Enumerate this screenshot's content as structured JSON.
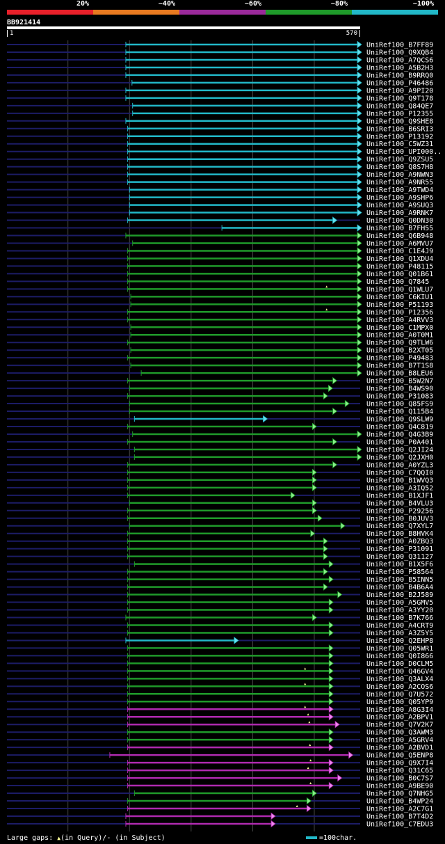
{
  "legend": [
    {
      "label": "20%",
      "color": "#e8202a"
    },
    {
      "label": "~40%",
      "color": "#e87a20"
    },
    {
      "label": "~60%",
      "color": "#9a2a9a"
    },
    {
      "label": "~80%",
      "color": "#1f9a2a"
    },
    {
      "label": "~100%",
      "color": "#22b8c8"
    }
  ],
  "colors": {
    "cyan": "#22b8c8",
    "green": "#1f9a2a",
    "purple": "#b02ab0",
    "dash": "#1c1c66",
    "gridline": "#444444"
  },
  "query": {
    "id": "BB921414",
    "start": "1",
    "end": "570",
    "length": 570
  },
  "footer": {
    "large_gaps": "Large gaps:",
    "in_query": "(in Query)/-",
    "in_subject": "(in Subject)",
    "scale_label": "=100char."
  },
  "chart_data": {
    "type": "alignment",
    "hits": [
      {
        "name": "UniRef100_B7FF89",
        "start": 194,
        "end": 570,
        "color": "cyan"
      },
      {
        "name": "UniRef100_Q9XQB4",
        "start": 194,
        "end": 570,
        "color": "cyan"
      },
      {
        "name": "UniRef100_A7QCS6",
        "start": 194,
        "end": 570,
        "color": "cyan"
      },
      {
        "name": "UniRef100_A5B2H3",
        "start": 194,
        "end": 570,
        "color": "cyan"
      },
      {
        "name": "UniRef100_B9RRQ0",
        "start": 194,
        "end": 570,
        "color": "cyan"
      },
      {
        "name": "UniRef100_P46486",
        "start": 204,
        "end": 570,
        "color": "cyan"
      },
      {
        "name": "UniRef100_A9PI20",
        "start": 194,
        "end": 570,
        "color": "cyan"
      },
      {
        "name": "UniRef100_Q9T178",
        "start": 194,
        "end": 570,
        "color": "cyan"
      },
      {
        "name": "UniRef100_Q84QE7",
        "start": 205,
        "end": 570,
        "color": "cyan"
      },
      {
        "name": "UniRef100_P12355",
        "start": 205,
        "end": 570,
        "color": "cyan"
      },
      {
        "name": "UniRef100_Q9SHE8",
        "start": 194,
        "end": 570,
        "color": "cyan"
      },
      {
        "name": "UniRef100_B6SRI3",
        "start": 197,
        "end": 570,
        "color": "cyan"
      },
      {
        "name": "UniRef100_P13192",
        "start": 197,
        "end": 570,
        "color": "cyan"
      },
      {
        "name": "UniRef100_C5WZ31",
        "start": 197,
        "end": 570,
        "color": "cyan"
      },
      {
        "name": "UniRef100_UPI000..",
        "start": 197,
        "end": 570,
        "color": "cyan"
      },
      {
        "name": "UniRef100_Q9ZSU5",
        "start": 197,
        "end": 570,
        "color": "cyan"
      },
      {
        "name": "UniRef100_Q8S7H8",
        "start": 197,
        "end": 570,
        "color": "cyan"
      },
      {
        "name": "UniRef100_A9NWN3",
        "start": 197,
        "end": 570,
        "color": "cyan"
      },
      {
        "name": "UniRef100_A9NR55",
        "start": 197,
        "end": 570,
        "color": "cyan"
      },
      {
        "name": "UniRef100_A9TWD4",
        "start": 200,
        "end": 570,
        "color": "cyan"
      },
      {
        "name": "UniRef100_A9SHP6",
        "start": 200,
        "end": 570,
        "color": "cyan"
      },
      {
        "name": "UniRef100_A9SUQ3",
        "start": 200,
        "end": 570,
        "color": "cyan"
      },
      {
        "name": "UniRef100_A9RNK7",
        "start": 200,
        "end": 570,
        "color": "cyan"
      },
      {
        "name": "UniRef100_Q0DN30",
        "start": 197,
        "end": 530,
        "color": "cyan"
      },
      {
        "name": "UniRef100_B7FH55",
        "start": 350,
        "end": 570,
        "color": "cyan"
      },
      {
        "name": "UniRef100_Q6B948",
        "start": 194,
        "end": 570,
        "color": "green"
      },
      {
        "name": "UniRef100_A6MVU7",
        "start": 205,
        "end": 570,
        "color": "green"
      },
      {
        "name": "UniRef100_C1E4J9",
        "start": 197,
        "end": 570,
        "color": "green"
      },
      {
        "name": "UniRef100_Q1XDU4",
        "start": 197,
        "end": 570,
        "color": "green"
      },
      {
        "name": "UniRef100_P48115",
        "start": 197,
        "end": 570,
        "color": "green"
      },
      {
        "name": "UniRef100_Q01B61",
        "start": 197,
        "end": 570,
        "color": "green"
      },
      {
        "name": "UniRef100_Q7845",
        "start": 197,
        "end": 570,
        "color": "green"
      },
      {
        "name": "UniRef100_Q1WLU7",
        "start": 197,
        "end": 570,
        "color": "green",
        "gaps": [
          520
        ]
      },
      {
        "name": "UniRef100_C6KIU1",
        "start": 202,
        "end": 570,
        "color": "green"
      },
      {
        "name": "UniRef100_P51193",
        "start": 202,
        "end": 570,
        "color": "green"
      },
      {
        "name": "UniRef100_P12356",
        "start": 197,
        "end": 570,
        "color": "green",
        "gaps": [
          520
        ]
      },
      {
        "name": "UniRef100_A4RVV3",
        "start": 197,
        "end": 570,
        "color": "green"
      },
      {
        "name": "UniRef100_C1MPX0",
        "start": 202,
        "end": 570,
        "color": "green"
      },
      {
        "name": "UniRef100_A0T0M1",
        "start": 202,
        "end": 570,
        "color": "green"
      },
      {
        "name": "UniRef100_Q9TLW6",
        "start": 197,
        "end": 570,
        "color": "green"
      },
      {
        "name": "UniRef100_B2XT05",
        "start": 202,
        "end": 570,
        "color": "green"
      },
      {
        "name": "UniRef100_P49483",
        "start": 197,
        "end": 570,
        "color": "green"
      },
      {
        "name": "UniRef100_B7T1S8",
        "start": 202,
        "end": 570,
        "color": "green"
      },
      {
        "name": "UniRef100_B8LEU6",
        "start": 219,
        "end": 570,
        "color": "green"
      },
      {
        "name": "UniRef100_B5W2N7",
        "start": 197,
        "end": 530,
        "color": "green"
      },
      {
        "name": "UniRef100_B4WS90",
        "start": 200,
        "end": 523,
        "color": "green"
      },
      {
        "name": "UniRef100_P31083",
        "start": 197,
        "end": 515,
        "color": "green"
      },
      {
        "name": "UniRef100_Q85FS9",
        "start": 200,
        "end": 550,
        "color": "green"
      },
      {
        "name": "UniRef100_Q115B4",
        "start": 200,
        "end": 530,
        "color": "green"
      },
      {
        "name": "UniRef100_Q9SLW9",
        "start": 208,
        "end": 417,
        "color": "cyan"
      },
      {
        "name": "UniRef100_Q4C819",
        "start": 197,
        "end": 497,
        "color": "green"
      },
      {
        "name": "UniRef100_Q4G3B9",
        "start": 205,
        "end": 570,
        "color": "green"
      },
      {
        "name": "UniRef100_P0A401",
        "start": 197,
        "end": 530,
        "color": "green"
      },
      {
        "name": "UniRef100_Q2JI24",
        "start": 208,
        "end": 570,
        "color": "green"
      },
      {
        "name": "UniRef100_Q2JXH0",
        "start": 208,
        "end": 570,
        "color": "green"
      },
      {
        "name": "UniRef100_A0YZL3",
        "start": 197,
        "end": 530,
        "color": "green"
      },
      {
        "name": "UniRef100_C7QQI0",
        "start": 197,
        "end": 497,
        "color": "green"
      },
      {
        "name": "UniRef100_B1WVQ3",
        "start": 197,
        "end": 497,
        "color": "green"
      },
      {
        "name": "UniRef100_A3IQ52",
        "start": 197,
        "end": 497,
        "color": "green"
      },
      {
        "name": "UniRef100_B1XJF1",
        "start": 197,
        "end": 462,
        "color": "green"
      },
      {
        "name": "UniRef100_B4VLU3",
        "start": 200,
        "end": 497,
        "color": "green"
      },
      {
        "name": "UniRef100_P29256",
        "start": 197,
        "end": 497,
        "color": "green"
      },
      {
        "name": "UniRef100_B0JUV3",
        "start": 197,
        "end": 506,
        "color": "green"
      },
      {
        "name": "UniRef100_Q7XYL7",
        "start": 200,
        "end": 543,
        "color": "green"
      },
      {
        "name": "UniRef100_B8HVK4",
        "start": 197,
        "end": 494,
        "color": "green"
      },
      {
        "name": "UniRef100_A0ZBQ3",
        "start": 197,
        "end": 515,
        "color": "green"
      },
      {
        "name": "UniRef100_P31091",
        "start": 197,
        "end": 515,
        "color": "green"
      },
      {
        "name": "UniRef100_Q31127",
        "start": 197,
        "end": 515,
        "color": "green"
      },
      {
        "name": "UniRef100_B1X5F6",
        "start": 208,
        "end": 524,
        "color": "green"
      },
      {
        "name": "UniRef100_P58564",
        "start": 197,
        "end": 515,
        "color": "green"
      },
      {
        "name": "UniRef100_B5INN5",
        "start": 197,
        "end": 524,
        "color": "green"
      },
      {
        "name": "UniRef100_B4B6A4",
        "start": 197,
        "end": 515,
        "color": "green"
      },
      {
        "name": "UniRef100_B2J589",
        "start": 197,
        "end": 538,
        "color": "green"
      },
      {
        "name": "UniRef100_A5GMV5",
        "start": 197,
        "end": 524,
        "color": "green"
      },
      {
        "name": "UniRef100_A3YY20",
        "start": 197,
        "end": 524,
        "color": "green"
      },
      {
        "name": "UniRef100_B7K766",
        "start": 194,
        "end": 497,
        "color": "green"
      },
      {
        "name": "UniRef100_A4CRT9",
        "start": 197,
        "end": 524,
        "color": "green"
      },
      {
        "name": "UniRef100_A3Z5Y5",
        "start": 197,
        "end": 524,
        "color": "green"
      },
      {
        "name": "UniRef100_Q2EHP8",
        "start": 194,
        "end": 370,
        "color": "cyan"
      },
      {
        "name": "UniRef100_Q05WR1",
        "start": 197,
        "end": 524,
        "color": "green"
      },
      {
        "name": "UniRef100_Q0I866",
        "start": 197,
        "end": 524,
        "color": "green"
      },
      {
        "name": "UniRef100_D0CLM5",
        "start": 197,
        "end": 524,
        "color": "green"
      },
      {
        "name": "UniRef100_Q46GV4",
        "start": 197,
        "end": 524,
        "color": "green",
        "gaps": [
          485
        ]
      },
      {
        "name": "UniRef100_Q3ALX4",
        "start": 197,
        "end": 524,
        "color": "green"
      },
      {
        "name": "UniRef100_A2COS6",
        "start": 197,
        "end": 524,
        "color": "green",
        "gaps": [
          485
        ]
      },
      {
        "name": "UniRef100_Q7U572",
        "start": 197,
        "end": 524,
        "color": "green"
      },
      {
        "name": "UniRef100_Q05YP9",
        "start": 197,
        "end": 524,
        "color": "green"
      },
      {
        "name": "UniRef100_A8G3I4",
        "start": 197,
        "end": 524,
        "color": "purple",
        "gaps": [
          485
        ]
      },
      {
        "name": "UniRef100_A2BPV1",
        "start": 197,
        "end": 524,
        "color": "purple",
        "gaps": [
          490
        ]
      },
      {
        "name": "UniRef100_Q7V2K7",
        "start": 197,
        "end": 534,
        "color": "purple",
        "gaps": [
          492
        ]
      },
      {
        "name": "UniRef100_Q3AWM3",
        "start": 197,
        "end": 524,
        "color": "green"
      },
      {
        "name": "UniRef100_A5GRV4",
        "start": 197,
        "end": 524,
        "color": "green"
      },
      {
        "name": "UniRef100_A2BVD1",
        "start": 197,
        "end": 524,
        "color": "purple",
        "gaps": [
          493
        ]
      },
      {
        "name": "UniRef100_Q5ENP8",
        "start": 168,
        "end": 556,
        "color": "purple"
      },
      {
        "name": "UniRef100_Q9X7I4",
        "start": 197,
        "end": 524,
        "color": "purple",
        "gaps": [
          494
        ]
      },
      {
        "name": "UniRef100_Q31C65",
        "start": 197,
        "end": 524,
        "color": "purple",
        "gaps": [
          490
        ]
      },
      {
        "name": "UniRef100_B0C7S7",
        "start": 197,
        "end": 538,
        "color": "purple"
      },
      {
        "name": "UniRef100_A9BE90",
        "start": 197,
        "end": 524,
        "color": "purple",
        "gaps": [
          494
        ]
      },
      {
        "name": "UniRef100_Q7NHG5",
        "start": 208,
        "end": 497,
        "color": "green"
      },
      {
        "name": "UniRef100_B4WP24",
        "start": 197,
        "end": 488,
        "color": "green"
      },
      {
        "name": "UniRef100_A2C7G1",
        "start": 197,
        "end": 488,
        "color": "purple",
        "gaps": [
          472
        ]
      },
      {
        "name": "UniRef100_B7T4D2",
        "start": 194,
        "end": 430,
        "color": "purple"
      },
      {
        "name": "UniRef100_C7EDU3",
        "start": 194,
        "end": 430,
        "color": "purple"
      }
    ]
  }
}
